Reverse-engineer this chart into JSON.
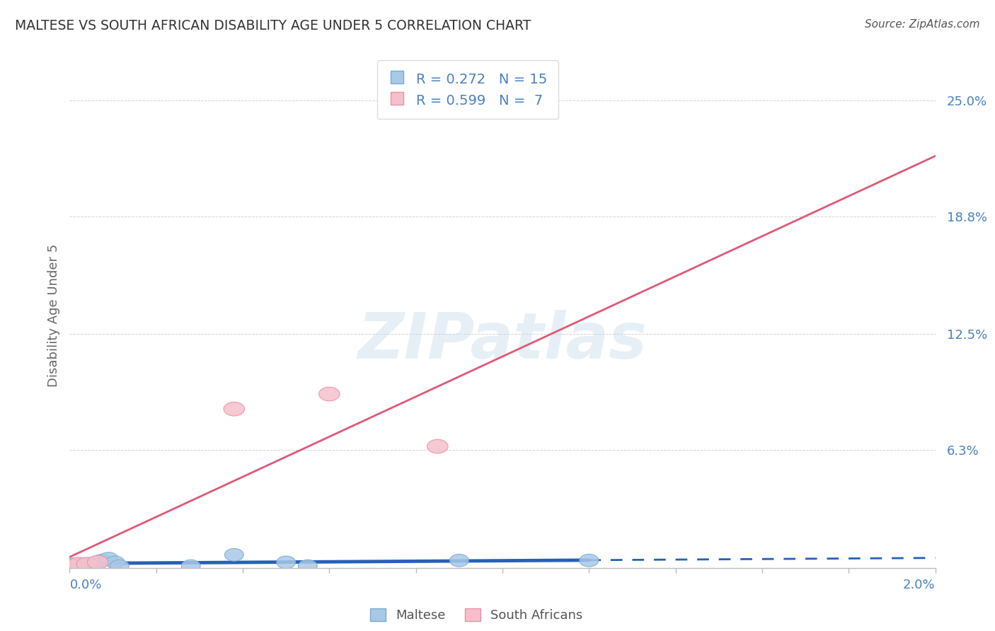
{
  "title": "MALTESE VS SOUTH AFRICAN DISABILITY AGE UNDER 5 CORRELATION CHART",
  "source": "Source: ZipAtlas.com",
  "ylabel": "Disability Age Under 5",
  "xlim": [
    0.0,
    0.02
  ],
  "ylim": [
    0.0,
    0.27
  ],
  "maltese_x": [
    0.0001,
    0.00025,
    0.0004,
    0.0005,
    0.00065,
    0.00075,
    0.0009,
    0.00105,
    0.00115,
    0.0028,
    0.0038,
    0.005,
    0.0055,
    0.009,
    0.012
  ],
  "maltese_y": [
    0.002,
    0.001,
    0.002,
    0.001,
    0.003,
    0.004,
    0.005,
    0.003,
    0.001,
    0.001,
    0.007,
    0.003,
    0.001,
    0.004,
    0.004
  ],
  "sa_x": [
    5e-05,
    0.0002,
    0.0004,
    0.00065,
    0.0038,
    0.006,
    0.0085
  ],
  "sa_y": [
    0.001,
    0.002,
    0.002,
    0.003,
    0.085,
    0.093,
    0.065
  ],
  "maltese_color": "#a8c8e8",
  "maltese_edge": "#7aaacf",
  "sa_color": "#f5c0cc",
  "sa_edge": "#e890a8",
  "trend_maltese_color": "#2860b8",
  "trend_sa_color": "#e05878",
  "R_maltese": 0.272,
  "N_maltese": 15,
  "R_sa": 0.599,
  "N_sa": 7,
  "watermark": "ZIPatlas",
  "background_color": "#ffffff",
  "grid_color": "#cccccc",
  "axis_color": "#4a80c0",
  "title_color": "#333333",
  "ylabel_color": "#666666"
}
